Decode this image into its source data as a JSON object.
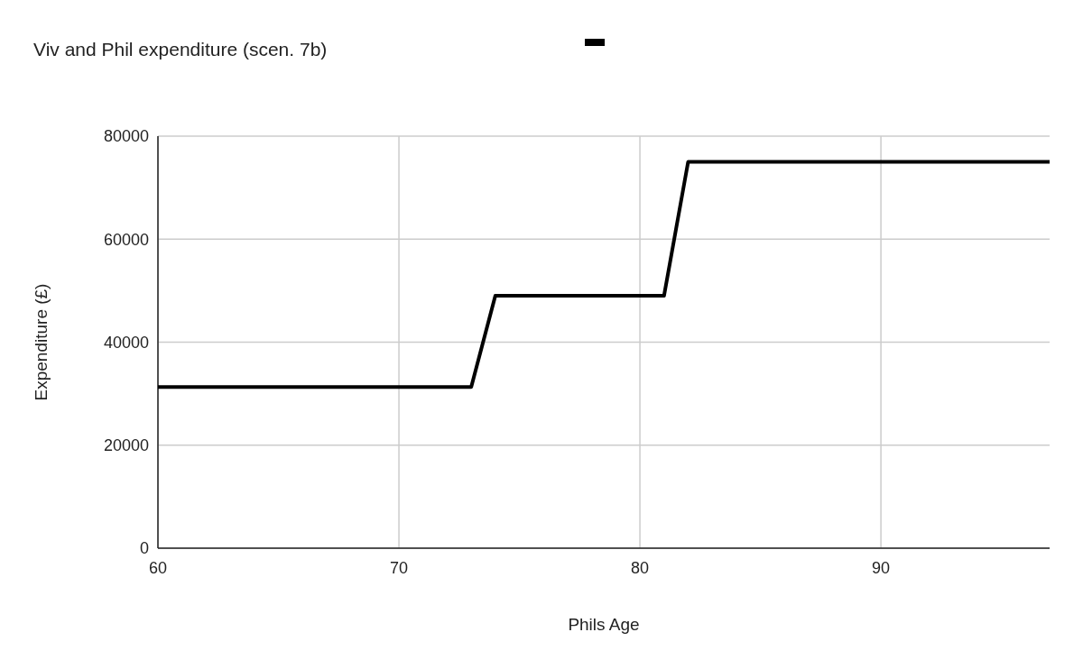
{
  "chart_data": {
    "type": "line",
    "title": "Viv and Phil expenditure (scen. 7b)",
    "xlabel": "Phils Age",
    "ylabel": "Expenditure (£)",
    "x": [
      60,
      73,
      74,
      81,
      82,
      97
    ],
    "series": [
      {
        "color": "#000000",
        "values": [
          31300,
          31300,
          49000,
          49000,
          75000,
          75000
        ]
      }
    ],
    "xlim": [
      60,
      97
    ],
    "xticks": [
      60,
      70,
      80,
      90
    ],
    "ylim": [
      0,
      80000
    ],
    "yticks": [
      0,
      20000,
      40000,
      60000,
      80000
    ],
    "grid": true,
    "marker": "none",
    "line_style": "solid"
  }
}
